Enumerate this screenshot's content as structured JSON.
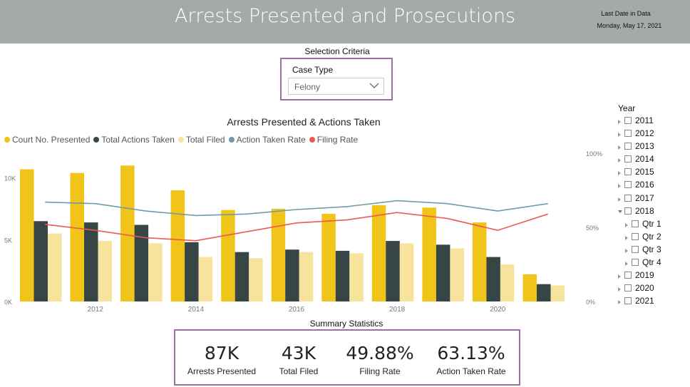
{
  "header": {
    "title": "Arrests Presented and Prosecutions",
    "last_date_label": "Last Date in Data",
    "last_date_value": "Monday, May 17, 2021"
  },
  "selection": {
    "title": "Selection Criteria",
    "case_type_label": "Case Type",
    "case_type_value": "Felony"
  },
  "year_slicer": {
    "title": "Year",
    "items": [
      {
        "label": "2011",
        "level": 0,
        "expanded": false
      },
      {
        "label": "2012",
        "level": 0,
        "expanded": false
      },
      {
        "label": "2013",
        "level": 0,
        "expanded": false
      },
      {
        "label": "2014",
        "level": 0,
        "expanded": false
      },
      {
        "label": "2015",
        "level": 0,
        "expanded": false
      },
      {
        "label": "2016",
        "level": 0,
        "expanded": false
      },
      {
        "label": "2017",
        "level": 0,
        "expanded": false
      },
      {
        "label": "2018",
        "level": 0,
        "expanded": true
      },
      {
        "label": "Qtr 1",
        "level": 1,
        "expanded": false
      },
      {
        "label": "Qtr 2",
        "level": 1,
        "expanded": false
      },
      {
        "label": "Qtr 3",
        "level": 1,
        "expanded": false
      },
      {
        "label": "Qtr 4",
        "level": 1,
        "expanded": false
      },
      {
        "label": "2019",
        "level": 0,
        "expanded": false
      },
      {
        "label": "2020",
        "level": 0,
        "expanded": false
      },
      {
        "label": "2021",
        "level": 0,
        "expanded": false
      }
    ]
  },
  "summary": {
    "title": "Summary Statistics",
    "kpis": [
      {
        "value": "87K",
        "label": "Arrests Presented"
      },
      {
        "value": "43K",
        "label": "Total Filed"
      },
      {
        "value": "49.88%",
        "label": "Filing Rate"
      },
      {
        "value": "63.13%",
        "label": "Action Taken Rate"
      }
    ]
  },
  "chart_data": {
    "type": "bar",
    "title": "Arrests Presented & Actions Taken",
    "xlabel": "",
    "ylabel": "",
    "x": [
      2011,
      2012,
      2013,
      2014,
      2015,
      2016,
      2017,
      2018,
      2019,
      2020,
      2021
    ],
    "x_tick_labels": [
      "2012",
      "2014",
      "2016",
      "2018",
      "2020"
    ],
    "x_tick_values": [
      2012,
      2014,
      2016,
      2018,
      2020
    ],
    "y_tick_labels": [
      "0K",
      "5K",
      "10K"
    ],
    "y_tick_values": [
      0,
      5000,
      10000
    ],
    "y2_tick_labels": [
      "0%",
      "50%",
      "100%"
    ],
    "y2_tick_values": [
      0,
      50,
      100
    ],
    "ylim": [
      0,
      12000
    ],
    "y2lim": [
      0,
      100
    ],
    "grid": false,
    "legend_position": "top-left",
    "series": [
      {
        "name": "Court No. Presented",
        "kind": "bar",
        "axis": "left",
        "color": "#f0c419",
        "values": [
          10700,
          10400,
          11000,
          9000,
          7400,
          7500,
          7100,
          7800,
          7600,
          6400,
          2200
        ]
      },
      {
        "name": "Total Actions Taken",
        "kind": "bar",
        "axis": "left",
        "color": "#384547",
        "values": [
          6500,
          6400,
          6200,
          4800,
          4000,
          4200,
          4100,
          4900,
          4600,
          3600,
          1400
        ]
      },
      {
        "name": "Total Filed",
        "kind": "bar",
        "axis": "left",
        "color": "#f7e39c",
        "values": [
          5500,
          4900,
          4700,
          3600,
          3500,
          4000,
          3900,
          4700,
          4300,
          3000,
          1300
        ]
      },
      {
        "name": "Action Taken Rate",
        "kind": "line",
        "axis": "right",
        "color": "#6f9aaa",
        "values": [
          67,
          66,
          61,
          58,
          59,
          62,
          64,
          68,
          66,
          61,
          66
        ]
      },
      {
        "name": "Filing Rate",
        "kind": "line",
        "axis": "right",
        "color": "#ea5a50",
        "values": [
          52,
          48,
          43,
          41,
          47,
          53,
          55,
          60,
          56,
          48,
          59
        ]
      }
    ]
  }
}
